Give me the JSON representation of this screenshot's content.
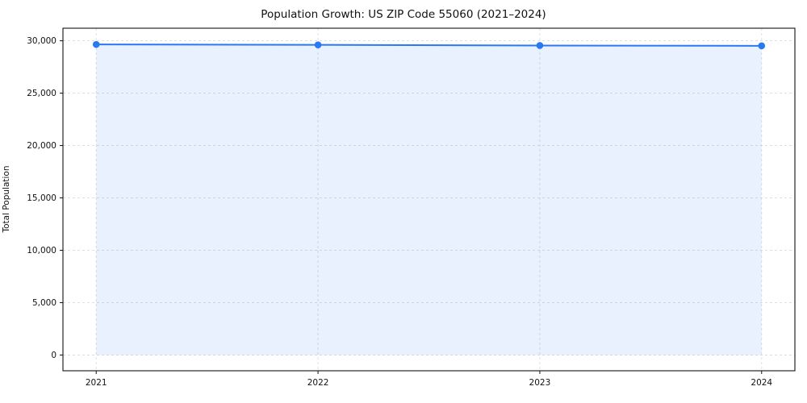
{
  "chart_data": {
    "type": "line",
    "title": "Population Growth: US ZIP Code 55060 (2021–2024)",
    "xlabel": "",
    "ylabel": "Total Population",
    "x": [
      2021,
      2022,
      2023,
      2024
    ],
    "series": [
      {
        "name": "Total Population",
        "values": [
          29650,
          29610,
          29550,
          29520
        ]
      }
    ],
    "x_tick_labels": [
      "2021",
      "2022",
      "2023",
      "2024"
    ],
    "y_ticks": [
      0,
      5000,
      10000,
      15000,
      20000,
      25000,
      30000
    ],
    "y_tick_labels": [
      "0",
      "5,000",
      "10,000",
      "15,000",
      "20,000",
      "25,000",
      "30,000"
    ],
    "xlim": [
      2020.85,
      2024.15
    ],
    "ylim": [
      -1500,
      31200
    ],
    "grid": true,
    "legend": "none",
    "colors": {
      "line": "#2979f2",
      "marker": "#2979f2",
      "fill": "#2979f2",
      "fill_opacity": 0.1,
      "grid": "#dcdcdc",
      "spine": "#111111",
      "tick_text": "#111111",
      "background": "#ffffff"
    }
  }
}
